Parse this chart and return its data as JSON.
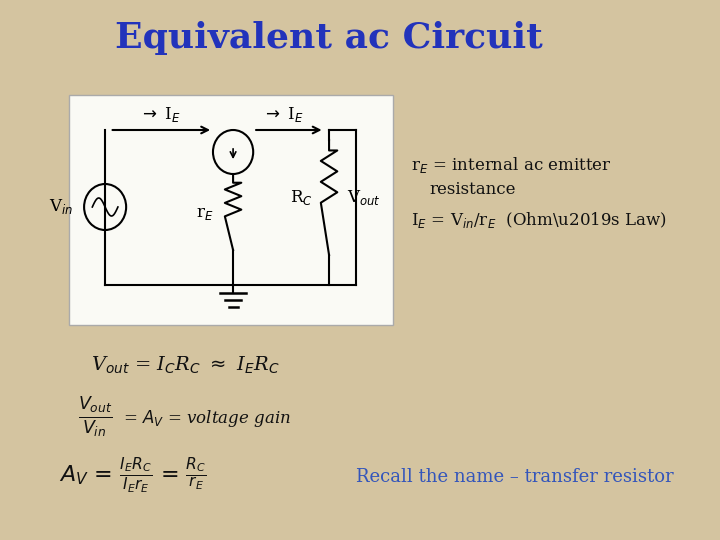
{
  "title": "Equivalent ac Circuit",
  "title_color": "#2233BB",
  "title_fontsize": 26,
  "background_color": "#D4C4A0",
  "circuit_box_color": "#FAFAF5",
  "text_color": "#111111",
  "blue_text_color": "#3355BB",
  "recall_color": "#3355BB",
  "recall_text": "Recall the name – transfer resistor"
}
